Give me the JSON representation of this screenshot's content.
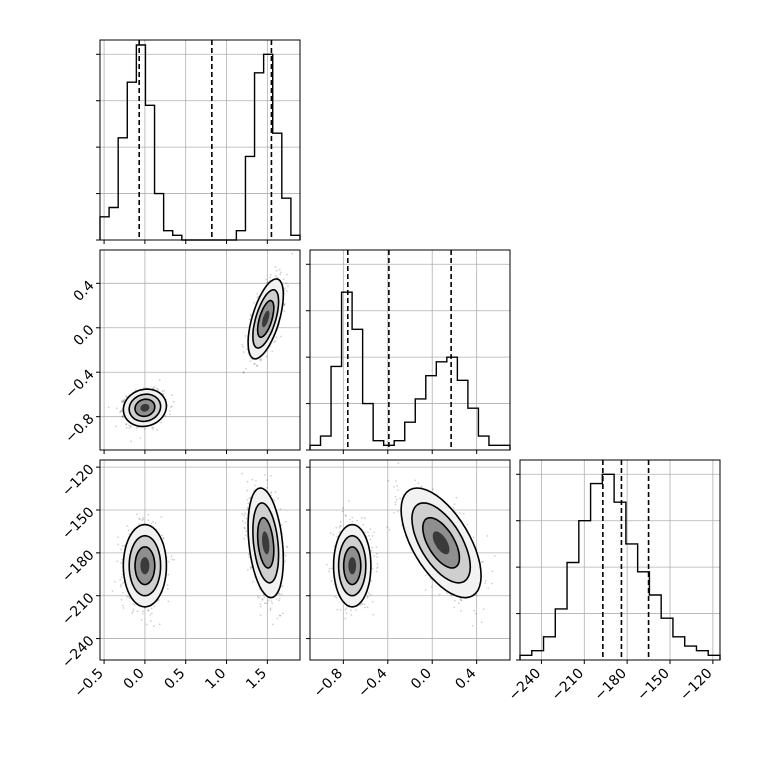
{
  "chart_data": {
    "type": "corner",
    "parameters": 3,
    "quantile_lines": [
      [
        -0.07,
        0.82,
        1.55
      ],
      [
        -0.76,
        -0.39,
        0.17
      ],
      [
        -197,
        -184,
        -165
      ]
    ],
    "hist1d": [
      {
        "range": [
          -0.55,
          1.9
        ],
        "heights": [
          0.05,
          0.07,
          0.22,
          0.34,
          0.42,
          0.29,
          0.1,
          0.02,
          0.01,
          0,
          0,
          0,
          0,
          0,
          0,
          0.02,
          0.18,
          0.36,
          0.4,
          0.23,
          0.09,
          0.01
        ]
      },
      {
        "range": [
          -1.1,
          0.7
        ],
        "heights": [
          0.01,
          0.03,
          0.18,
          0.34,
          0.26,
          0.1,
          0.02,
          0.01,
          0.02,
          0.06,
          0.11,
          0.16,
          0.19,
          0.2,
          0.15,
          0.09,
          0.03,
          0.01,
          0.01
        ]
      },
      {
        "range": [
          -255,
          -115
        ],
        "heights": [
          0.01,
          0.02,
          0.05,
          0.11,
          0.21,
          0.3,
          0.38,
          0.4,
          0.34,
          0.25,
          0.19,
          0.14,
          0.09,
          0.05,
          0.03,
          0.02,
          0.01
        ]
      }
    ],
    "x_ticks": [
      {
        "values": [
          -0.5,
          0.0,
          0.5,
          1.0,
          1.5
        ],
        "labels": [
          "−0.5",
          "0.0",
          "0.5",
          "1.0",
          "1.5"
        ]
      },
      {
        "values": [
          -0.8,
          -0.4,
          0.0,
          0.4
        ],
        "labels": [
          "−0.8",
          "−0.4",
          "0.0",
          "0.4"
        ]
      },
      {
        "values": [
          -240,
          -210,
          -180,
          -150,
          -120
        ],
        "labels": [
          "−240",
          "−210",
          "−180",
          "−150",
          "−120"
        ]
      }
    ],
    "y_ticks": [
      null,
      {
        "values": [
          -0.8,
          -0.4,
          0.0,
          0.4
        ],
        "labels": [
          "−0.8",
          "−0.4",
          "0.0",
          "0.4"
        ]
      },
      {
        "values": [
          -240,
          -210,
          -180,
          -150,
          -120
        ],
        "labels": [
          "−240",
          "−210",
          "−180",
          "−150",
          "−120"
        ]
      }
    ],
    "clusters": [
      {
        "mean": [
          0.0,
          -0.72,
          -189
        ],
        "sd": [
          0.11,
          0.07,
          12
        ],
        "corr": [
          [
            1,
            0.1,
            0.0
          ],
          [
            0.1,
            1,
            0.0
          ],
          [
            0.0,
            0.0,
            1
          ]
        ],
        "weight": 0.5
      },
      {
        "mean": [
          1.48,
          0.08,
          -173
        ],
        "sd": [
          0.09,
          0.15,
          16
        ],
        "corr": [
          [
            1,
            0.6,
            -0.3
          ],
          [
            0.6,
            1,
            -0.6
          ],
          [
            -0.3,
            -0.6,
            1
          ]
        ],
        "weight": 0.5
      }
    ],
    "grid": true
  }
}
